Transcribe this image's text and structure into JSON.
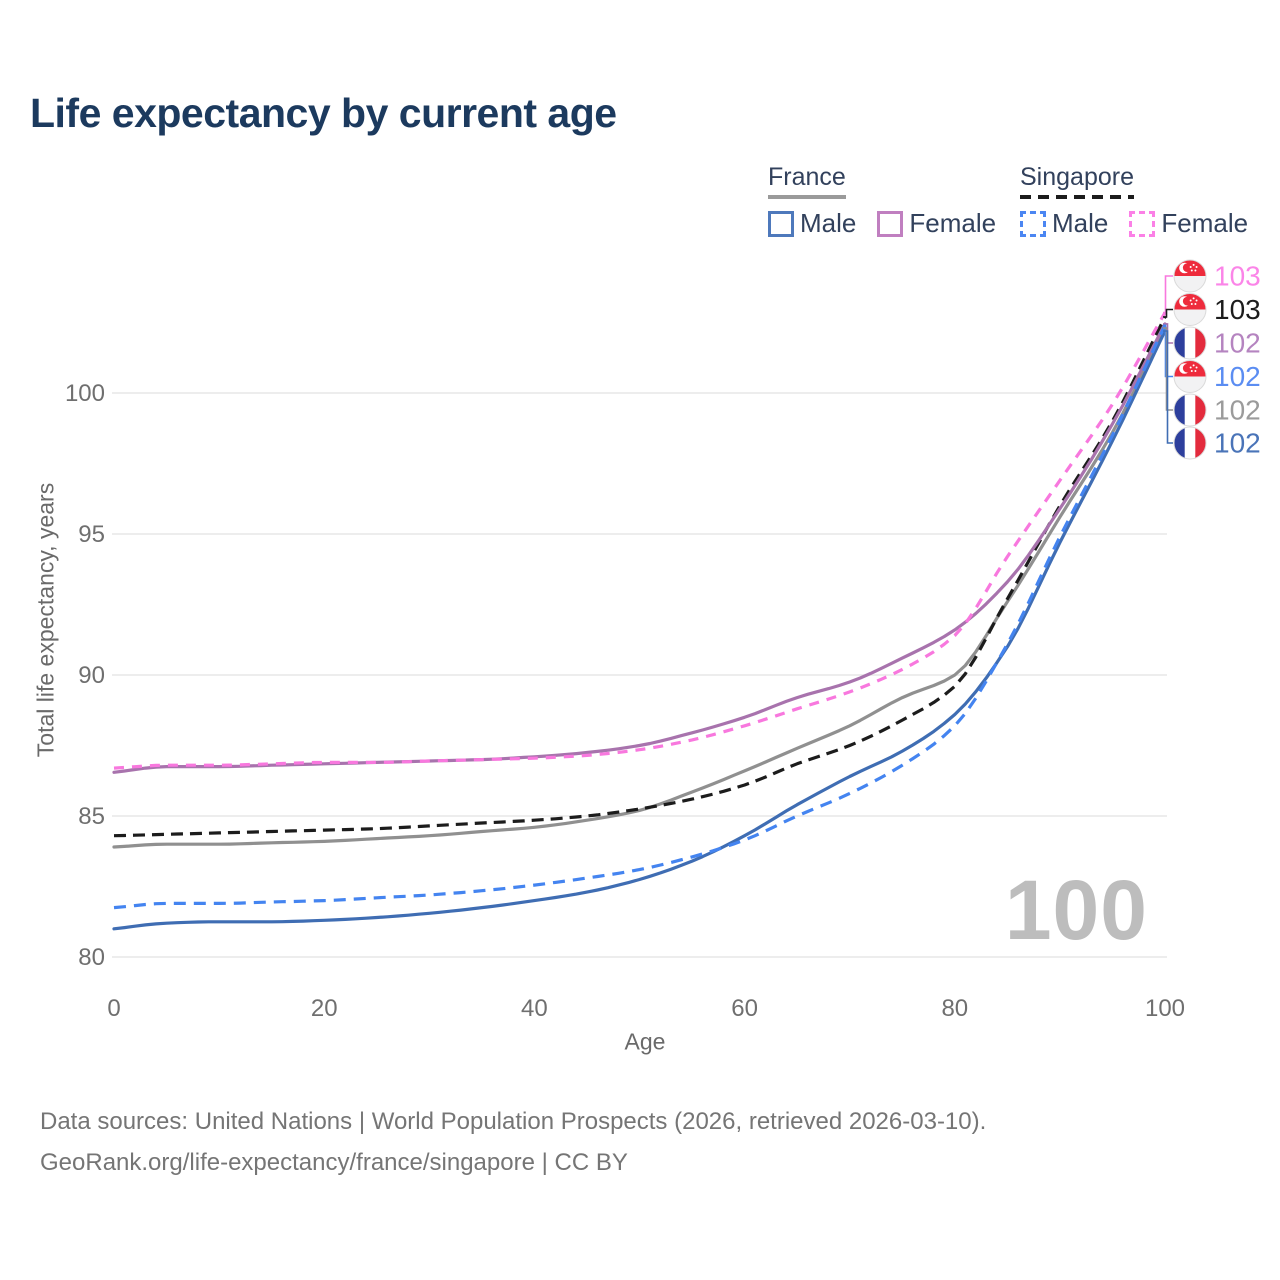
{
  "title": "Life expectancy by current age",
  "legend": {
    "groups": [
      {
        "label": "France",
        "line_style": "solid",
        "underline_color": "#9a9a9a",
        "items": [
          {
            "label": "Male",
            "color": "#4e79bc"
          },
          {
            "label": "Female",
            "color": "#c07fc0"
          }
        ]
      },
      {
        "label": "Singapore",
        "line_style": "dashed",
        "underline_color": "#1c1c1c",
        "items": [
          {
            "label": "Male",
            "color": "#4b86f2"
          },
          {
            "label": "Female",
            "color": "#fb80e6"
          }
        ]
      }
    ]
  },
  "watermark_age": "100",
  "footer": {
    "line1": "Data sources: United Nations | World Population Prospects (2026, retrieved 2026-03-10).",
    "line2": "GeoRank.org/life-expectancy/france/singapore | CC BY"
  },
  "chart_data": {
    "type": "line",
    "title": "Life expectancy by current age",
    "xlabel": "Age",
    "ylabel": "Total life expectancy, years",
    "x_ticks": [
      0,
      20,
      40,
      60,
      80,
      100
    ],
    "y_ticks": [
      80,
      85,
      90,
      95,
      100
    ],
    "xlim": [
      0,
      100
    ],
    "ylim": [
      80,
      103.5
    ],
    "grid": "horizontal",
    "gridline_color": "#e7e7e7",
    "tick_color": "#6f6f6f",
    "ages": [
      0,
      5,
      10,
      15,
      20,
      25,
      30,
      35,
      40,
      45,
      50,
      55,
      60,
      65,
      70,
      75,
      80,
      85,
      90,
      95,
      100
    ],
    "series": [
      {
        "name": "France Both sexes",
        "country": "France",
        "sex": "Both",
        "style": "solid",
        "color": "#909090",
        "dash": null,
        "label_row": 4,
        "values": [
          83.9,
          84.0,
          84.0,
          84.05,
          84.1,
          84.2,
          84.3,
          84.45,
          84.6,
          84.85,
          85.2,
          85.85,
          86.6,
          87.4,
          88.2,
          89.2,
          90.0,
          92.6,
          95.6,
          98.6,
          102.3
        ]
      },
      {
        "name": "Singapore Both sexes",
        "country": "Singapore",
        "sex": "Both",
        "style": "dashed",
        "color": "#1c1c1c",
        "dash": "12 7",
        "label_row": 1,
        "values": [
          84.3,
          84.35,
          84.4,
          84.45,
          84.5,
          84.55,
          84.65,
          84.75,
          84.85,
          85.0,
          85.25,
          85.6,
          86.1,
          86.85,
          87.5,
          88.4,
          89.6,
          92.7,
          96.0,
          99.0,
          102.7
        ]
      },
      {
        "name": "France Female",
        "country": "France",
        "sex": "Female",
        "style": "solid",
        "color": "#a873ad",
        "dash": null,
        "label_row": 2,
        "values": [
          86.55,
          86.75,
          86.75,
          86.8,
          86.85,
          86.9,
          86.95,
          87.0,
          87.1,
          87.25,
          87.5,
          87.95,
          88.5,
          89.2,
          89.75,
          90.6,
          91.6,
          93.3,
          95.9,
          98.9,
          102.45
        ]
      },
      {
        "name": "Singapore Female",
        "country": "Singapore",
        "sex": "Female",
        "style": "dashed",
        "color": "#f878de",
        "dash": "10 8",
        "label_row": 0,
        "values": [
          86.7,
          86.8,
          86.8,
          86.85,
          86.9,
          86.9,
          86.95,
          87.0,
          87.05,
          87.15,
          87.35,
          87.7,
          88.2,
          88.8,
          89.4,
          90.2,
          91.4,
          94.2,
          96.9,
          99.6,
          102.85
        ]
      },
      {
        "name": "France Male",
        "country": "France",
        "sex": "Male",
        "style": "solid",
        "color": "#3f6db3",
        "dash": null,
        "label_row": 5,
        "values": [
          81.0,
          81.2,
          81.25,
          81.25,
          81.3,
          81.4,
          81.55,
          81.75,
          82.0,
          82.3,
          82.75,
          83.4,
          84.3,
          85.4,
          86.4,
          87.3,
          88.6,
          91.0,
          94.7,
          98.3,
          102.2
        ]
      },
      {
        "name": "Singapore Male",
        "country": "Singapore",
        "sex": "Male",
        "style": "dashed",
        "color": "#4484f0",
        "dash": "12 8",
        "label_row": 3,
        "values": [
          81.75,
          81.9,
          81.9,
          81.95,
          82.0,
          82.1,
          82.2,
          82.35,
          82.55,
          82.8,
          83.1,
          83.55,
          84.15,
          85.0,
          85.8,
          86.8,
          88.2,
          91.1,
          94.9,
          98.5,
          102.4
        ]
      }
    ],
    "end_labels": [
      {
        "series": "Singapore Female",
        "flag": "sg",
        "text": "103",
        "color": "#fb85e8"
      },
      {
        "series": "Singapore Both sexes",
        "flag": "sg",
        "text": "103",
        "color": "#1c1c1c"
      },
      {
        "series": "France Female",
        "flag": "fr",
        "text": "102",
        "color": "#b584c0"
      },
      {
        "series": "Singapore Male",
        "flag": "sg",
        "text": "102",
        "color": "#5b8df2"
      },
      {
        "series": "France Both sexes",
        "flag": "fr",
        "text": "102",
        "color": "#9b9b9b"
      },
      {
        "series": "France Male",
        "flag": "fr",
        "text": "102",
        "color": "#4a74b8"
      }
    ],
    "legend_position": "top-right"
  },
  "flag_colors": {
    "sg_red": "#ee2b3c",
    "sg_white": "#f2f2f3",
    "fr_blue": "#2d3f9d",
    "fr_white": "#ffffff",
    "fr_red": "#e32b3d"
  }
}
